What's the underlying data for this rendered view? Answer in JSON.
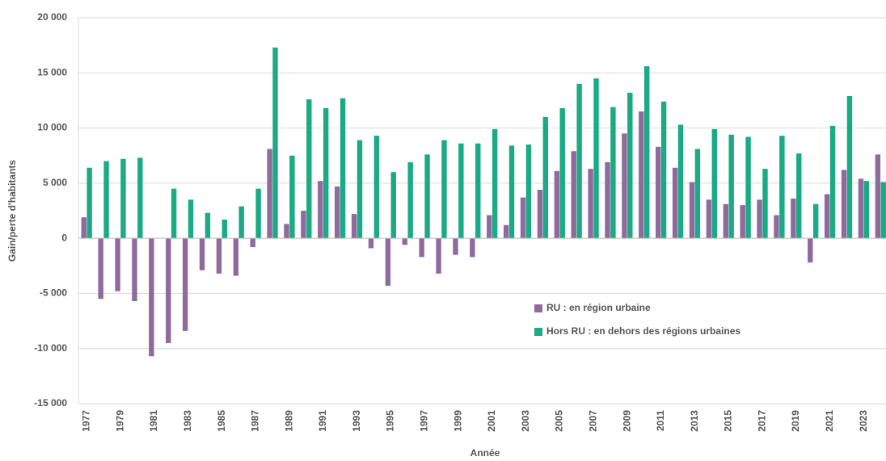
{
  "chart_data": {
    "type": "bar",
    "x_label": "Année",
    "y_label": "Gain/perte d'habitants",
    "categories": [
      "1977",
      null,
      "1979",
      null,
      "1981",
      null,
      "1983",
      null,
      "1985",
      null,
      "1987",
      null,
      "1989",
      null,
      "1991",
      null,
      "1993",
      null,
      "1995",
      null,
      "1997",
      null,
      "1999",
      null,
      "2001",
      null,
      "2003",
      null,
      "2005",
      null,
      "2007",
      null,
      "2009",
      null,
      "2011",
      null,
      "2013",
      null,
      "2015",
      null,
      "2017",
      null,
      "2019",
      null,
      "2021",
      null,
      "2023",
      null
    ],
    "series": [
      {
        "name": "RU : en région urbaine",
        "color": "#8e6a9d",
        "values": [
          1900,
          -5500,
          -4800,
          -5700,
          -10700,
          -9500,
          -8400,
          -2900,
          -3200,
          -3400,
          -800,
          8100,
          1300,
          2500,
          5200,
          4700,
          2200,
          -900,
          -4300,
          -600,
          -1700,
          -3200,
          -1500,
          -1700,
          2100,
          1200,
          3700,
          4400,
          6100,
          7900,
          6300,
          6900,
          9500,
          11500,
          8300,
          6400,
          5100,
          3500,
          3100,
          3000,
          3500,
          2100,
          3600,
          -2200,
          4000,
          6200,
          5400,
          7600
        ]
      },
      {
        "name": "Hors RU : en dehors des régions urbaines",
        "color": "#1aaa84",
        "values": [
          6400,
          7000,
          7200,
          7300,
          0,
          4500,
          3500,
          2300,
          1700,
          2900,
          4500,
          17300,
          7500,
          12600,
          11800,
          12700,
          8900,
          9300,
          6000,
          6900,
          7600,
          8900,
          8600,
          8600,
          9900,
          8400,
          8500,
          11000,
          11800,
          14000,
          14500,
          11900,
          13200,
          15600,
          12400,
          10300,
          8100,
          9900,
          9400,
          9200,
          6300,
          9300,
          7700,
          3100,
          10200,
          12900,
          5200,
          5100
        ]
      }
    ],
    "ylim": [
      -15000,
      20000
    ],
    "yticks": [
      {
        "value": -15000,
        "label": "-15 000"
      },
      {
        "value": -10000,
        "label": "-10 000"
      },
      {
        "value": -5000,
        "label": "-5 000"
      },
      0,
      {
        "value": 5000,
        "label": "5 000"
      },
      {
        "value": 10000,
        "label": "10 000"
      },
      {
        "value": 15000,
        "label": "15 000"
      },
      {
        "value": 20000,
        "label": "20 000"
      }
    ],
    "grid": true
  }
}
